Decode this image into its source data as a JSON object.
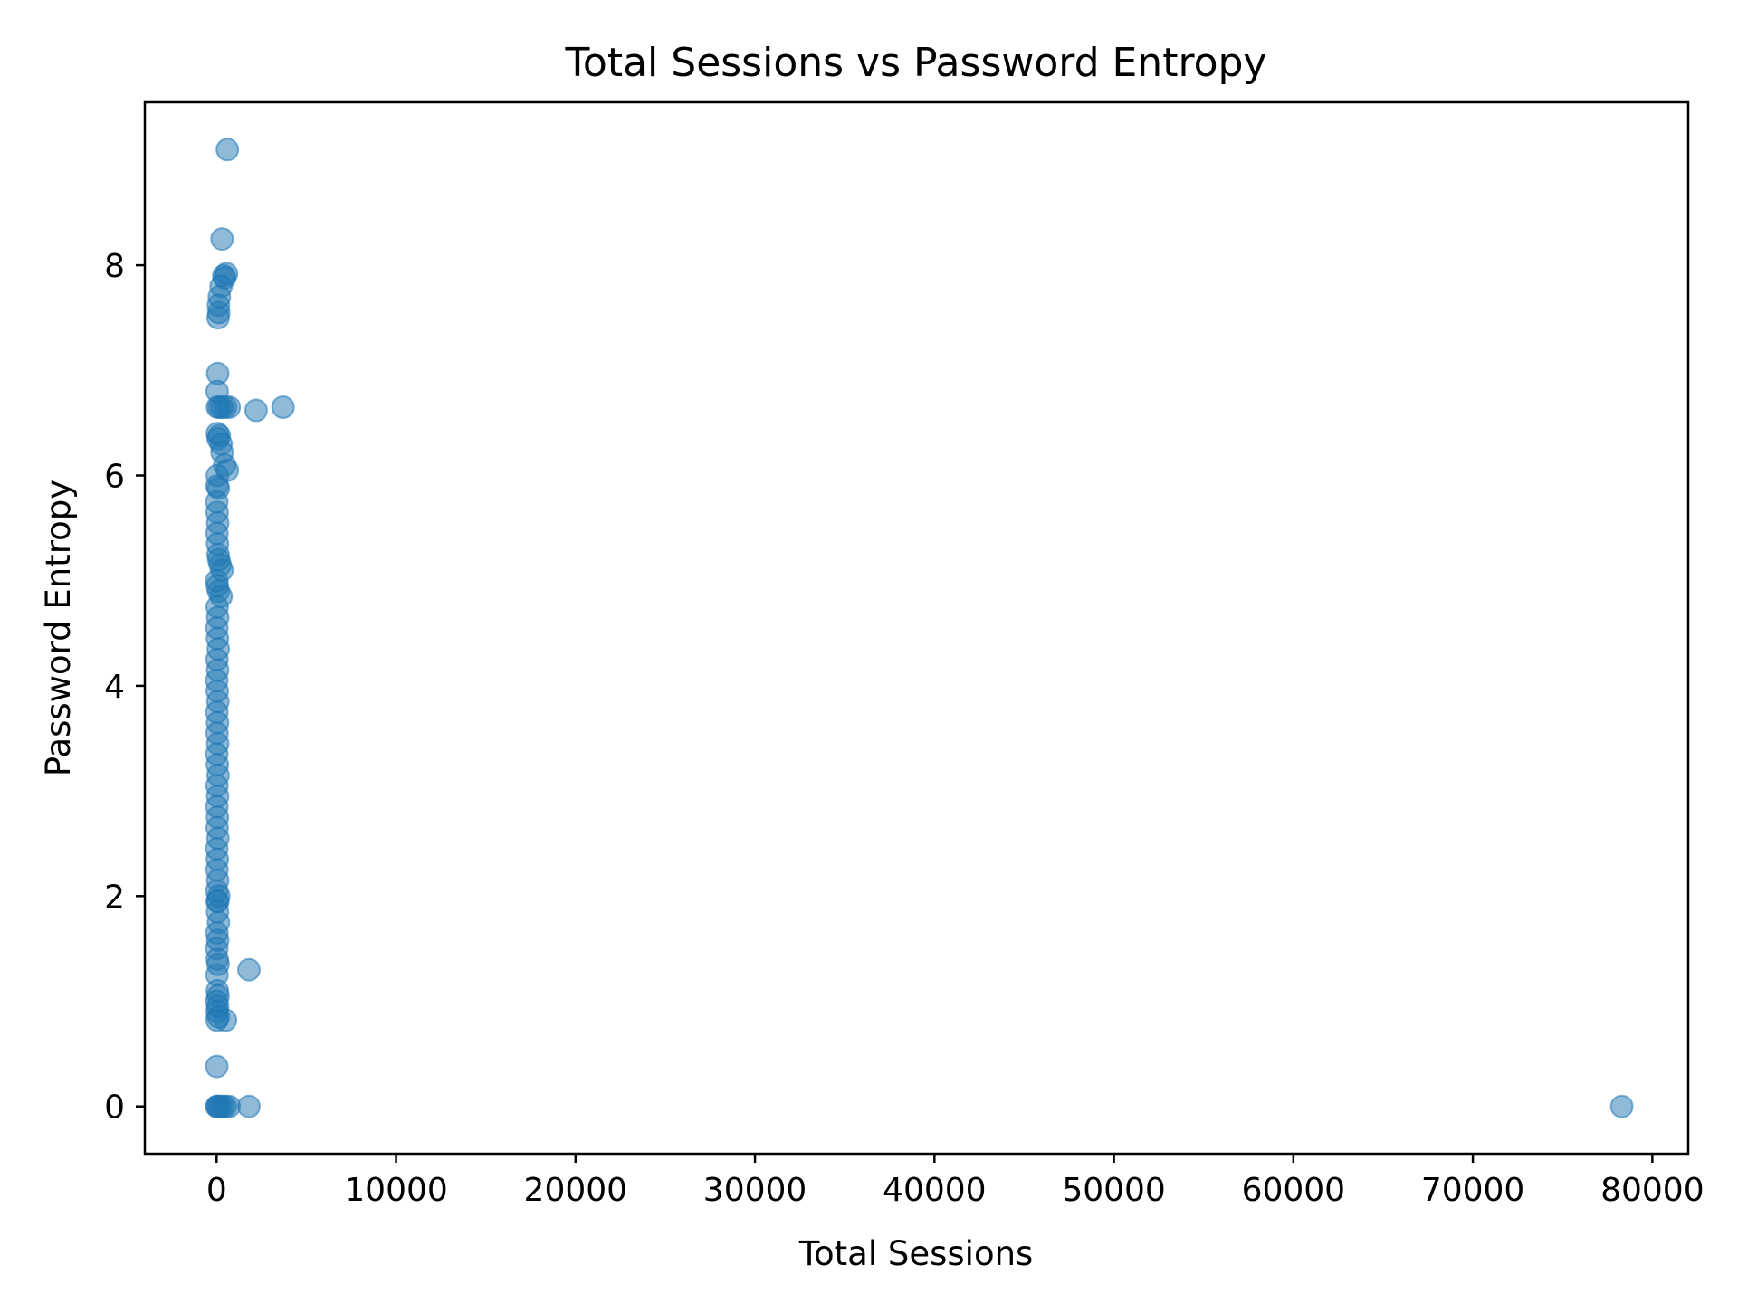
{
  "chart_data": {
    "type": "scatter",
    "title": "Total Sessions vs Password Entropy",
    "xlabel": "Total Sessions",
    "ylabel": "Password Entropy",
    "xlim": [
      -4000,
      82000
    ],
    "ylim": [
      -0.45,
      9.55
    ],
    "xticks": [
      0,
      10000,
      20000,
      30000,
      40000,
      50000,
      60000,
      70000,
      80000
    ],
    "yticks": [
      0,
      2,
      4,
      6,
      8
    ],
    "grid": false,
    "legend": "none",
    "color": "#1f77b4",
    "alpha": 0.5,
    "series": [
      {
        "points": [
          [
            600,
            9.1
          ],
          [
            300,
            8.25
          ],
          [
            400,
            7.9
          ],
          [
            550,
            7.92
          ],
          [
            450,
            7.88
          ],
          [
            250,
            7.8
          ],
          [
            150,
            7.7
          ],
          [
            100,
            7.62
          ],
          [
            80,
            7.5
          ],
          [
            120,
            7.55
          ],
          [
            60,
            6.97
          ],
          [
            30,
            6.8
          ],
          [
            50,
            6.65
          ],
          [
            150,
            6.65
          ],
          [
            300,
            6.65
          ],
          [
            500,
            6.65
          ],
          [
            700,
            6.65
          ],
          [
            2200,
            6.62
          ],
          [
            3700,
            6.65
          ],
          [
            40,
            6.4
          ],
          [
            80,
            6.35
          ],
          [
            150,
            6.38
          ],
          [
            250,
            6.3
          ],
          [
            300,
            6.22
          ],
          [
            450,
            6.1
          ],
          [
            600,
            6.05
          ],
          [
            40,
            6.0
          ],
          [
            20,
            5.9
          ],
          [
            100,
            5.88
          ],
          [
            10,
            5.75
          ],
          [
            30,
            5.65
          ],
          [
            60,
            5.55
          ],
          [
            20,
            5.45
          ],
          [
            50,
            5.35
          ],
          [
            80,
            5.25
          ],
          [
            120,
            5.2
          ],
          [
            200,
            5.15
          ],
          [
            300,
            5.1
          ],
          [
            10,
            5.0
          ],
          [
            40,
            4.95
          ],
          [
            100,
            4.9
          ],
          [
            250,
            4.85
          ],
          [
            30,
            4.75
          ],
          [
            60,
            4.65
          ],
          [
            15,
            4.55
          ],
          [
            45,
            4.45
          ],
          [
            90,
            4.35
          ],
          [
            20,
            4.25
          ],
          [
            55,
            4.15
          ],
          [
            10,
            4.05
          ],
          [
            35,
            3.95
          ],
          [
            70,
            3.85
          ],
          [
            15,
            3.75
          ],
          [
            50,
            3.65
          ],
          [
            25,
            3.55
          ],
          [
            60,
            3.45
          ],
          [
            10,
            3.35
          ],
          [
            40,
            3.25
          ],
          [
            80,
            3.15
          ],
          [
            20,
            3.05
          ],
          [
            55,
            2.95
          ],
          [
            15,
            2.85
          ],
          [
            45,
            2.75
          ],
          [
            30,
            2.65
          ],
          [
            70,
            2.55
          ],
          [
            10,
            2.45
          ],
          [
            40,
            2.35
          ],
          [
            20,
            2.25
          ],
          [
            60,
            2.15
          ],
          [
            15,
            2.05
          ],
          [
            30,
            1.95
          ],
          [
            70,
            1.95
          ],
          [
            120,
            2.0
          ],
          [
            50,
            1.85
          ],
          [
            100,
            1.75
          ],
          [
            20,
            1.65
          ],
          [
            60,
            1.58
          ],
          [
            10,
            1.5
          ],
          [
            40,
            1.4
          ],
          [
            80,
            1.35
          ],
          [
            1800,
            1.3
          ],
          [
            20,
            1.25
          ],
          [
            40,
            1.1
          ],
          [
            80,
            1.05
          ],
          [
            10,
            1.0
          ],
          [
            60,
            0.95
          ],
          [
            30,
            0.9
          ],
          [
            100,
            0.85
          ],
          [
            500,
            0.82
          ],
          [
            20,
            0.82
          ],
          [
            10,
            0.38
          ],
          [
            5,
            0.0
          ],
          [
            40,
            0.0
          ],
          [
            100,
            0.0
          ],
          [
            200,
            0.0
          ],
          [
            350,
            0.0
          ],
          [
            500,
            0.0
          ],
          [
            700,
            0.0
          ],
          [
            1800,
            0.0
          ],
          [
            78300,
            0.0
          ]
        ]
      }
    ]
  }
}
